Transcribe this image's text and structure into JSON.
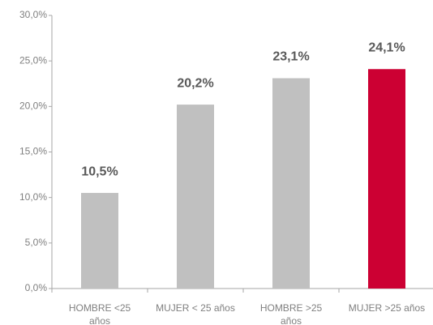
{
  "chart_data": {
    "type": "bar",
    "categories": [
      "HOMBRE <25 años",
      "MUJER < 25 años",
      "HOMBRE >25 años",
      "MUJER >25 años"
    ],
    "values": [
      10.5,
      20.2,
      23.1,
      24.1
    ],
    "value_labels": [
      "10,5%",
      "20,2%",
      "23,1%",
      "24,1%"
    ],
    "colors": [
      "#c0c0c0",
      "#c0c0c0",
      "#c0c0c0",
      "#cc0033"
    ],
    "ylim": [
      0,
      30
    ],
    "yticks": [
      {
        "value": 0,
        "label": "0,0%"
      },
      {
        "value": 5,
        "label": "5,0%"
      },
      {
        "value": 10,
        "label": "10,0%"
      },
      {
        "value": 15,
        "label": "15,0%"
      },
      {
        "value": 20,
        "label": "20,0%"
      },
      {
        "value": 25,
        "label": "25,0%"
      },
      {
        "value": 30,
        "label": "30,0%"
      }
    ],
    "grid": false
  }
}
